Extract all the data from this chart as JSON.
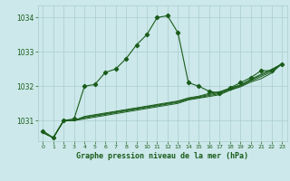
{
  "title": "Graphe pression niveau de la mer (hPa)",
  "background_color": "#cce8ea",
  "plot_bg_color": "#cce8ea",
  "grid_color": "#aacccc",
  "line_color": "#1a5c1a",
  "xlim": [
    -0.5,
    23.5
  ],
  "ylim": [
    1030.4,
    1034.35
  ],
  "yticks": [
    1031,
    1032,
    1033,
    1034
  ],
  "xticks": [
    0,
    1,
    2,
    3,
    4,
    5,
    6,
    7,
    8,
    9,
    10,
    11,
    12,
    13,
    14,
    15,
    16,
    17,
    18,
    19,
    20,
    21,
    22,
    23
  ],
  "series_main": [
    1030.7,
    1030.5,
    1031.0,
    1031.05,
    1032.0,
    1032.05,
    1032.4,
    1032.5,
    1032.8,
    1033.2,
    1033.5,
    1034.0,
    1034.05,
    1033.55,
    1032.1,
    1032.0,
    1031.85,
    1031.8,
    1031.95,
    1032.1,
    1032.25,
    1032.45,
    1032.45,
    1032.65
  ],
  "series_bundle": [
    [
      1030.65,
      1030.5,
      1031.0,
      1031.0,
      1031.05,
      1031.1,
      1031.15,
      1031.2,
      1031.25,
      1031.3,
      1031.35,
      1031.4,
      1031.45,
      1031.5,
      1031.6,
      1031.65,
      1031.7,
      1031.75,
      1031.88,
      1031.98,
      1032.12,
      1032.22,
      1032.38,
      1032.65
    ],
    [
      1030.65,
      1030.5,
      1031.0,
      1031.0,
      1031.08,
      1031.13,
      1031.18,
      1031.23,
      1031.28,
      1031.33,
      1031.38,
      1031.43,
      1031.48,
      1031.53,
      1031.62,
      1031.67,
      1031.73,
      1031.78,
      1031.9,
      1032.0,
      1032.15,
      1032.28,
      1032.42,
      1032.65
    ],
    [
      1030.65,
      1030.5,
      1031.0,
      1031.0,
      1031.1,
      1031.15,
      1031.2,
      1031.25,
      1031.3,
      1031.35,
      1031.4,
      1031.45,
      1031.5,
      1031.55,
      1031.64,
      1031.69,
      1031.76,
      1031.81,
      1031.92,
      1032.02,
      1032.18,
      1032.32,
      1032.46,
      1032.65
    ],
    [
      1030.65,
      1030.5,
      1031.0,
      1031.0,
      1031.12,
      1031.17,
      1031.22,
      1031.27,
      1031.32,
      1031.37,
      1031.42,
      1031.47,
      1031.52,
      1031.57,
      1031.66,
      1031.71,
      1031.79,
      1031.84,
      1031.94,
      1032.04,
      1032.2,
      1032.35,
      1032.49,
      1032.65
    ]
  ]
}
